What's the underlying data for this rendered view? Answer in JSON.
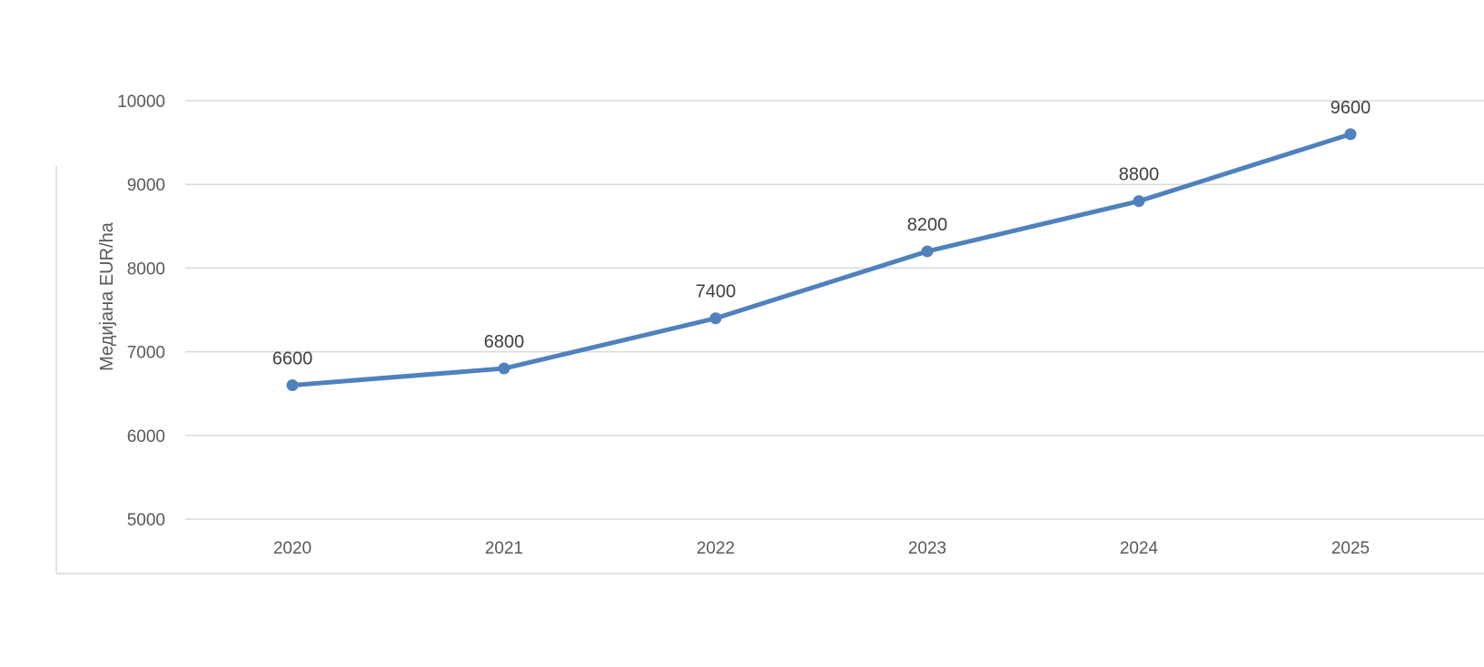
{
  "chart_data": {
    "type": "line",
    "title": "",
    "xlabel": "",
    "ylabel": "Медијана EUR/ha",
    "categories": [
      "2020",
      "2021",
      "2022",
      "2023",
      "2024",
      "2025"
    ],
    "series": [
      {
        "values": [
          6600,
          6800,
          7400,
          8200,
          8800,
          9600
        ],
        "color": "#4f81bd"
      }
    ],
    "ylim": [
      5000,
      10000
    ],
    "yticks": [
      "5000",
      "6000",
      "7000",
      "8000",
      "9000",
      "10000"
    ],
    "grid": true,
    "legend": "none",
    "data_labels": true,
    "colors": {
      "line": "#4f81bd",
      "grid": "#d9d9d9",
      "frame": "#d9d9d9",
      "tick_text": "#595959",
      "label_text": "#404040"
    }
  }
}
